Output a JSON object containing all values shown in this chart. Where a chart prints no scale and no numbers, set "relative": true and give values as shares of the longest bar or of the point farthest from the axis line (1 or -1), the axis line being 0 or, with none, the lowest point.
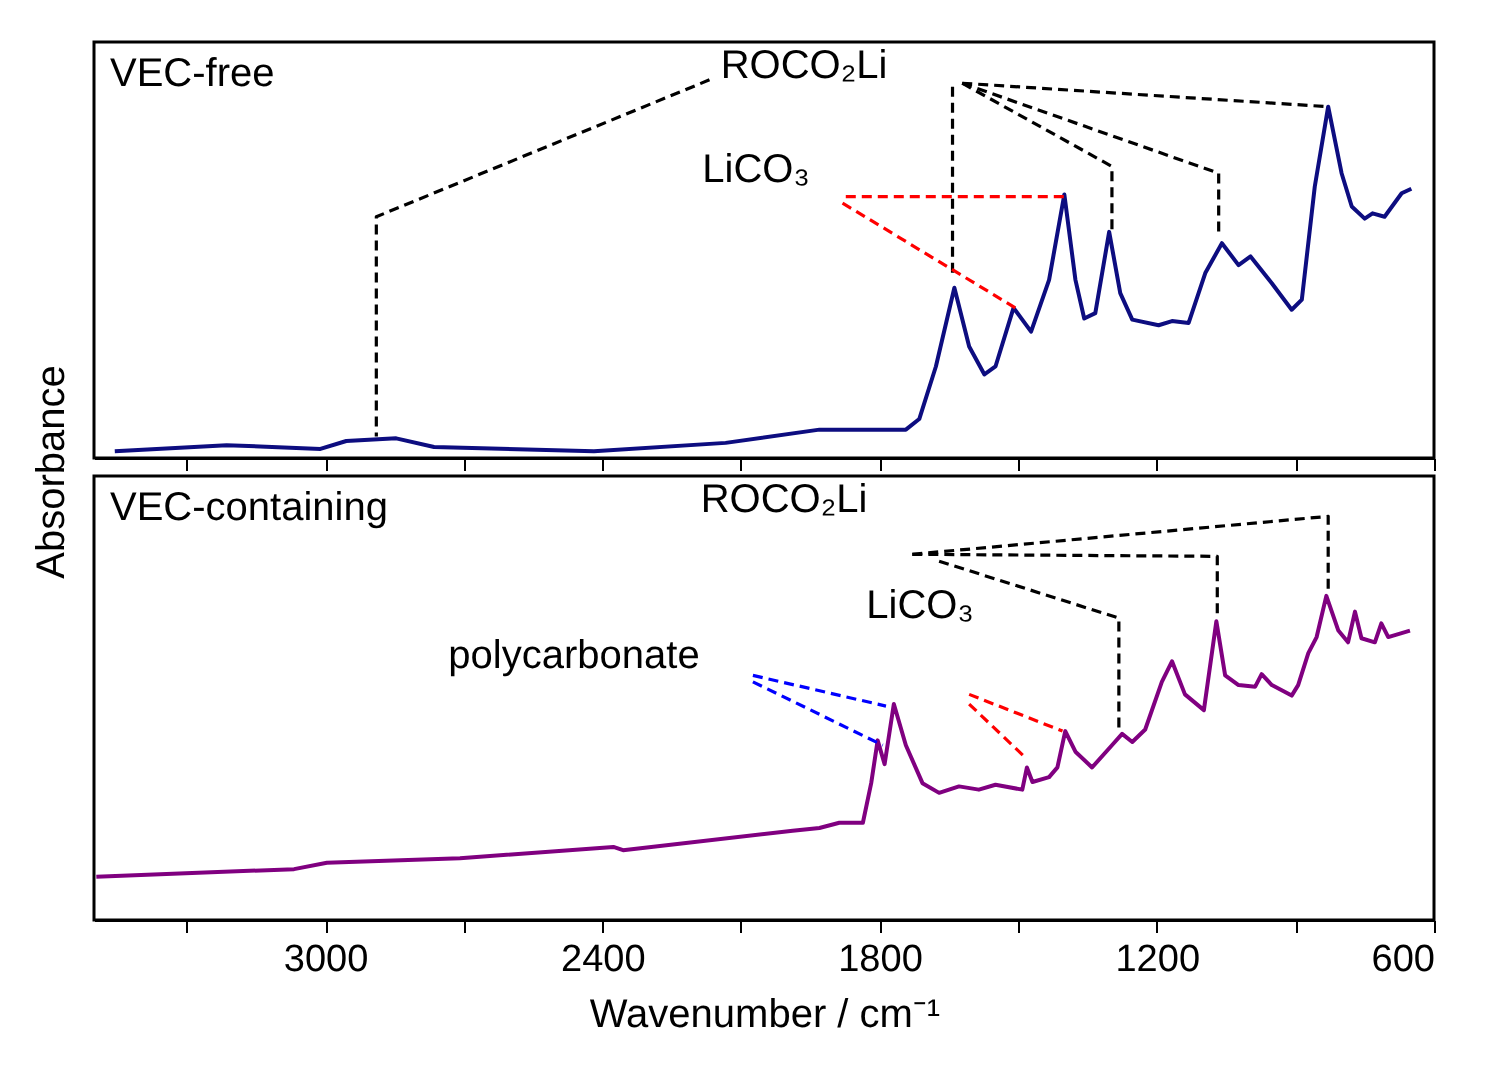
{
  "chart_data": [
    {
      "type": "line",
      "title": "VEC-free",
      "ylabel": "Absorbance",
      "relative": true,
      "grid": false,
      "tick_labels": false,
      "xlim": [
        3500,
        600
      ],
      "xticks": [
        {
          "value": 3300,
          "label": null
        },
        3000,
        {
          "value": 2700,
          "label": null
        },
        2400,
        {
          "value": 2100,
          "label": null
        },
        1800,
        {
          "value": 1500,
          "label": null
        },
        1200,
        {
          "value": 900,
          "label": null
        },
        600
      ],
      "series": [
        {
          "color": "#0d0d80",
          "line_style": "solid",
          "x": [
            3455,
            3213,
            3010,
            2954,
            2846,
            2764,
            2418,
            2133,
            1930,
            1743,
            1714,
            1678,
            1638,
            1606,
            1573,
            1549,
            1510,
            1472,
            1433,
            1400,
            1376,
            1357,
            1333,
            1303,
            1279,
            1253,
            1196,
            1167,
            1131,
            1095,
            1059,
            1023,
            997,
            951,
            908,
            886,
            858,
            829,
            800,
            778,
            750,
            733,
            707,
            670,
            649
          ],
          "values": [
            0.018,
            0.034,
            0.024,
            0.045,
            0.052,
            0.029,
            0.018,
            0.04,
            0.075,
            0.075,
            0.103,
            0.242,
            0.45,
            0.295,
            0.221,
            0.242,
            0.397,
            0.334,
            0.471,
            0.697,
            0.471,
            0.369,
            0.383,
            0.598,
            0.436,
            0.366,
            0.351,
            0.362,
            0.357,
            0.489,
            0.568,
            0.51,
            0.533,
            0.462,
            0.392,
            0.419,
            0.718,
            0.929,
            0.753,
            0.665,
            0.633,
            0.647,
            0.638,
            0.7,
            0.712
          ]
        },
        {
          "color": "#000000",
          "line_style": "dashed",
          "x": [
            2168,
            2889,
            2889
          ],
          "values": [
            1.0,
            0.638,
            0.057
          ]
        },
        {
          "color": "#000000",
          "line_style": "dashed",
          "x": [
            1642,
            1642
          ],
          "values": [
            0.982,
            0.489
          ]
        },
        {
          "color": "#000000",
          "line_style": "dashed",
          "x": [
            1621,
            1297,
            1297
          ],
          "values": [
            0.991,
            0.771,
            0.604
          ]
        },
        {
          "color": "#000000",
          "line_style": "dashed",
          "x": [
            1621,
            1066,
            1066
          ],
          "values": [
            0.991,
            0.753,
            0.595
          ]
        },
        {
          "color": "#000000",
          "line_style": "dashed",
          "x": [
            1621,
            829
          ],
          "values": [
            0.991,
            0.929
          ]
        },
        {
          "color": "#ff0000",
          "line_style": "dashed",
          "x": [
            1873,
            1398
          ],
          "values": [
            0.691,
            0.691
          ]
        },
        {
          "color": "#ff0000",
          "line_style": "dashed",
          "x": [
            1880,
            1506
          ],
          "values": [
            0.674,
            0.397
          ]
        }
      ],
      "annotations": [
        "ROCO₂Li",
        "LiCO₃"
      ]
    },
    {
      "type": "line",
      "title": "VEC-containing",
      "xlabel": "Wavenumber / cm⁻¹",
      "relative": true,
      "grid": false,
      "tick_labels": "x",
      "xlim": [
        3500,
        600
      ],
      "xticks": [
        {
          "value": 3300,
          "label": null
        },
        3000,
        {
          "value": 2700,
          "label": null
        },
        2400,
        {
          "value": 2100,
          "label": null
        },
        1800,
        {
          "value": 1500,
          "label": null
        },
        1200,
        {
          "value": 900,
          "label": null
        },
        600
      ],
      "series": [
        {
          "color": "#800080",
          "line_style": "solid",
          "x": [
            3495,
            3067,
            2996,
            2708,
            2376,
            2355,
            1988,
            1930,
            1887,
            1836,
            1818,
            1804,
            1789,
            1769,
            1743,
            1707,
            1671,
            1628,
            1585,
            1549,
            1491,
            1481,
            1469,
            1433,
            1415,
            1398,
            1376,
            1340,
            1297,
            1275,
            1253,
            1225,
            1189,
            1167,
            1139,
            1098,
            1071,
            1052,
            1023,
            987,
            973,
            951,
            908,
            894,
            872,
            854,
            833,
            807,
            786,
            771,
            757,
            728,
            714,
            699,
            652
          ],
          "values": [
            0.107,
            0.126,
            0.142,
            0.153,
            0.181,
            0.173,
            0.221,
            0.228,
            0.241,
            0.241,
            0.339,
            0.445,
            0.386,
            0.535,
            0.433,
            0.339,
            0.315,
            0.331,
            0.323,
            0.335,
            0.323,
            0.378,
            0.342,
            0.354,
            0.378,
            0.468,
            0.417,
            0.378,
            0.433,
            0.461,
            0.441,
            0.472,
            0.59,
            0.641,
            0.559,
            0.52,
            0.74,
            0.606,
            0.582,
            0.578,
            0.609,
            0.582,
            0.556,
            0.582,
            0.661,
            0.701,
            0.803,
            0.717,
            0.688,
            0.764,
            0.698,
            0.688,
            0.735,
            0.701,
            0.717
          ]
        },
        {
          "color": "#000000",
          "line_style": "dashed",
          "x": [
            1729,
            1069,
            1069
          ],
          "values": [
            0.906,
            0.901,
            0.748
          ]
        },
        {
          "color": "#000000",
          "line_style": "dashed",
          "x": [
            1729,
            829,
            829
          ],
          "values": [
            0.906,
            1.0,
            0.811
          ]
        },
        {
          "color": "#000000",
          "line_style": "dashed",
          "x": [
            1671,
            1282,
            1282
          ],
          "values": [
            0.889,
            0.748,
            0.464
          ]
        },
        {
          "color": "#ff0000",
          "line_style": "dashed",
          "x": [
            1606,
            1404
          ],
          "values": [
            0.559,
            0.468
          ]
        },
        {
          "color": "#ff0000",
          "line_style": "dashed",
          "x": [
            1606,
            1484
          ],
          "values": [
            0.535,
            0.402
          ]
        },
        {
          "color": "#0000ff",
          "line_style": "dashed",
          "x": [
            2074,
            1786
          ],
          "values": [
            0.606,
            0.53
          ]
        },
        {
          "color": "#0000ff",
          "line_style": "dashed",
          "x": [
            2074,
            1793
          ],
          "values": [
            0.59,
            0.433
          ]
        }
      ],
      "annotations": [
        "ROCO₂Li",
        "LiCO₃",
        "polycarbonate"
      ]
    }
  ]
}
